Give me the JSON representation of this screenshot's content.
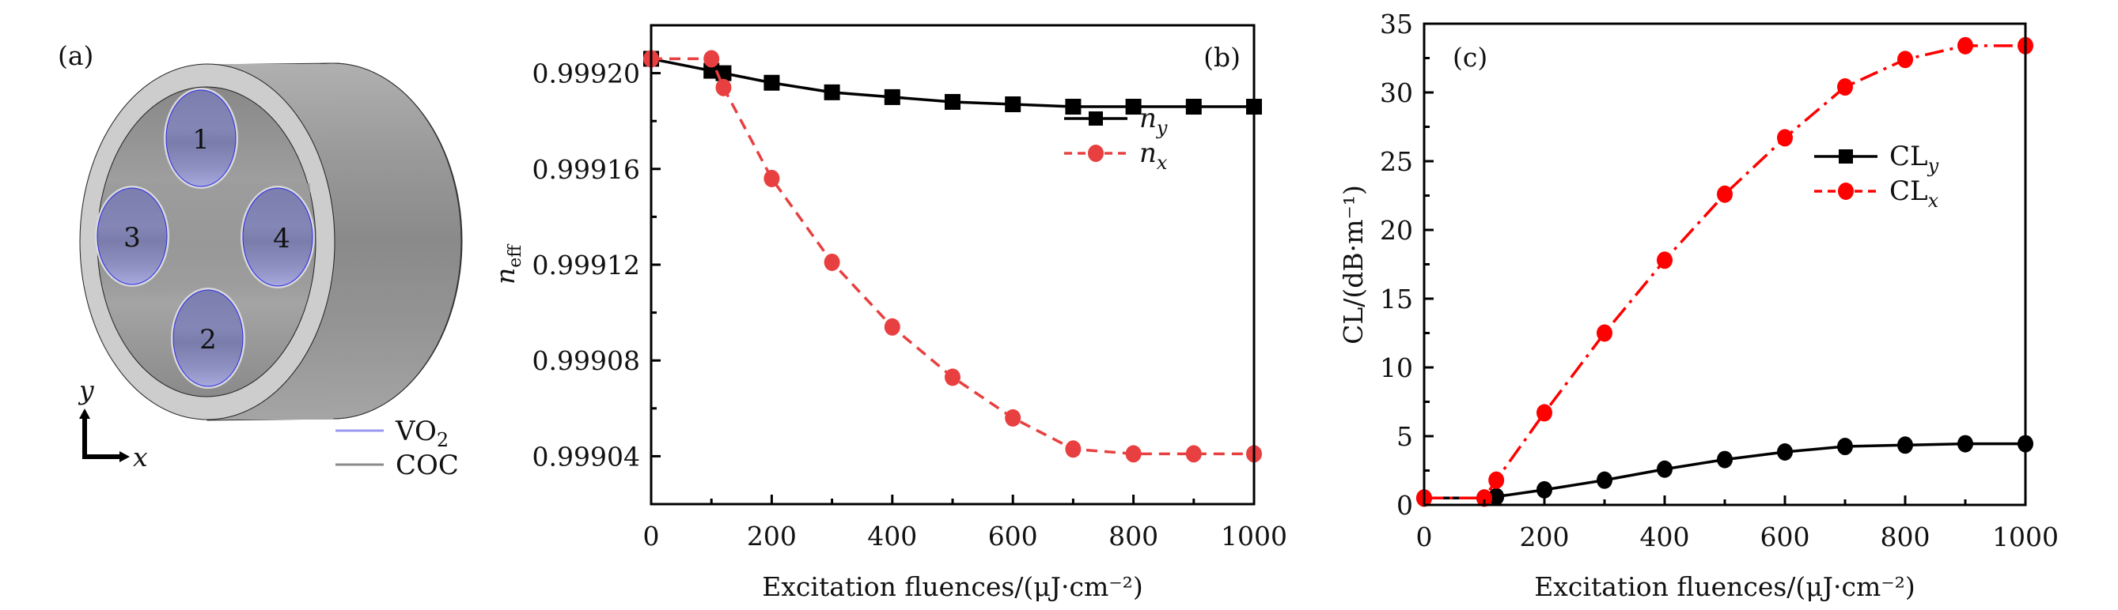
{
  "figure": {
    "panel_a": {
      "label": "(a)",
      "rod_labels": [
        "1",
        "2",
        "3",
        "4"
      ],
      "axis_labels": {
        "x": "x",
        "y": "y"
      },
      "legend": [
        {
          "label": "VO",
          "subscript": "2",
          "color": "#9a9af0"
        },
        {
          "label": "COC",
          "subscript": "",
          "color": "#8a8a8a"
        }
      ],
      "colors": {
        "ring": "#cdcdcd",
        "body": "#8f8f8f",
        "rod": "#8688b8",
        "rod_edge": "#2020e0"
      }
    }
  },
  "chart_data": [
    {
      "id": "b",
      "type": "line",
      "panel_label": "(b)",
      "title": "",
      "xlabel": "Excitation fluences/(μJ·cm⁻²)",
      "ylabel": "n",
      "ylabel_sub": "eff",
      "xlim": [
        0,
        1000
      ],
      "ylim": [
        0.99902,
        0.99922
      ],
      "xticks": [
        0,
        200,
        400,
        600,
        800,
        1000
      ],
      "xticks_minor": [
        100,
        300,
        500,
        700,
        900
      ],
      "yticks": [
        0.99904,
        0.99908,
        0.99912,
        0.99916,
        0.9992
      ],
      "ytick_labels": [
        "0.99904",
        "0.99908",
        "0.99912",
        "0.99916",
        "0.99920"
      ],
      "yticks_minor": [
        0.99906,
        0.9991,
        0.99914,
        0.99918
      ],
      "grid": false,
      "legend_position": "upper-right",
      "x": [
        0,
        100,
        120,
        200,
        300,
        400,
        500,
        600,
        700,
        800,
        900,
        1000
      ],
      "series": [
        {
          "name": "n",
          "sub": "y",
          "color": "#000000",
          "marker": "square",
          "dash": "solid",
          "values": [
            0.999206,
            0.999201,
            0.9992,
            0.999196,
            0.999192,
            0.99919,
            0.999188,
            0.999187,
            0.999186,
            0.999186,
            0.999186,
            0.999186
          ]
        },
        {
          "name": "n",
          "sub": "x",
          "color": "#e84040",
          "marker": "circle",
          "dash": "dashed",
          "values": [
            0.999206,
            0.999206,
            0.999194,
            0.999156,
            0.999121,
            0.999094,
            0.999073,
            0.999056,
            0.999043,
            0.999041,
            0.999041,
            0.999041
          ]
        }
      ]
    },
    {
      "id": "c",
      "type": "line",
      "panel_label": "(c)",
      "title": "",
      "xlabel": "Excitation fluences/(μJ·cm⁻²)",
      "ylabel": "CL/(dB·m⁻¹)",
      "xlim": [
        0,
        1000
      ],
      "ylim": [
        0,
        35
      ],
      "xticks": [
        0,
        200,
        400,
        600,
        800,
        1000
      ],
      "xticks_minor": [
        100,
        300,
        500,
        700,
        900
      ],
      "yticks": [
        0,
        5,
        10,
        15,
        20,
        25,
        30,
        35
      ],
      "ytick_labels": [
        "0",
        "5",
        "10",
        "15",
        "20",
        "25",
        "30",
        "35"
      ],
      "yticks_minor": [
        2.5,
        7.5,
        12.5,
        17.5,
        22.5,
        27.5,
        32.5
      ],
      "grid": false,
      "legend_position": "center-right",
      "series": [
        {
          "name": "CL",
          "sub": "y",
          "color": "#000000",
          "marker": "circle",
          "legend_marker": "square",
          "dash": "solid",
          "x": [
            0,
            100,
            120,
            200,
            300,
            400,
            500,
            600,
            700,
            800,
            900,
            1000
          ],
          "values": [
            0.5,
            0.5,
            0.6,
            1.1,
            1.8,
            2.6,
            3.3,
            3.85,
            4.25,
            4.35,
            4.45,
            4.45
          ]
        },
        {
          "name": "CL",
          "sub": "x",
          "color": "#ff0000",
          "marker": "circle",
          "dash": "dashdot",
          "x": [
            0,
            100,
            120,
            200,
            300,
            400,
            500,
            600,
            700,
            800,
            900,
            1000
          ],
          "values": [
            0.5,
            0.5,
            1.8,
            6.7,
            12.5,
            17.8,
            22.6,
            26.7,
            30.4,
            32.4,
            33.4,
            33.4
          ]
        }
      ]
    }
  ]
}
